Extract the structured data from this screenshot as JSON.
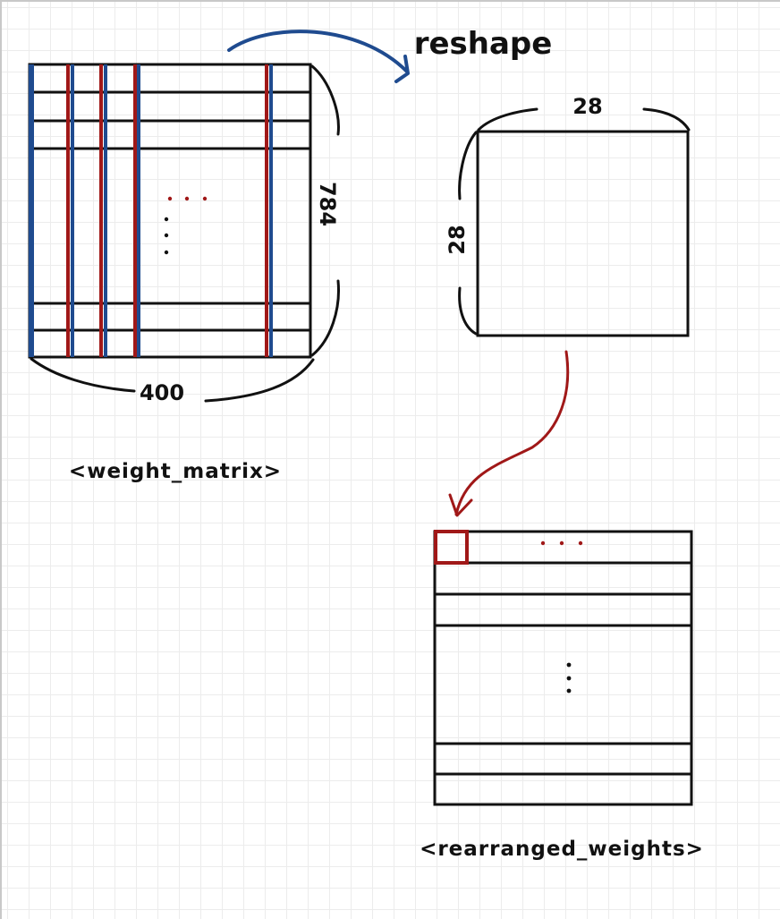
{
  "labels": {
    "reshape": "reshape",
    "matrix_height": "784",
    "matrix_width": "400",
    "matrix_caption": "<weight_matrix>",
    "square_width": "28",
    "square_height": "28",
    "rearranged_caption": "<rearranged_weights>"
  },
  "colors": {
    "ink": "#111111",
    "blue": "#1f4b8f",
    "red": "#a01818",
    "grid": "#ececec"
  }
}
